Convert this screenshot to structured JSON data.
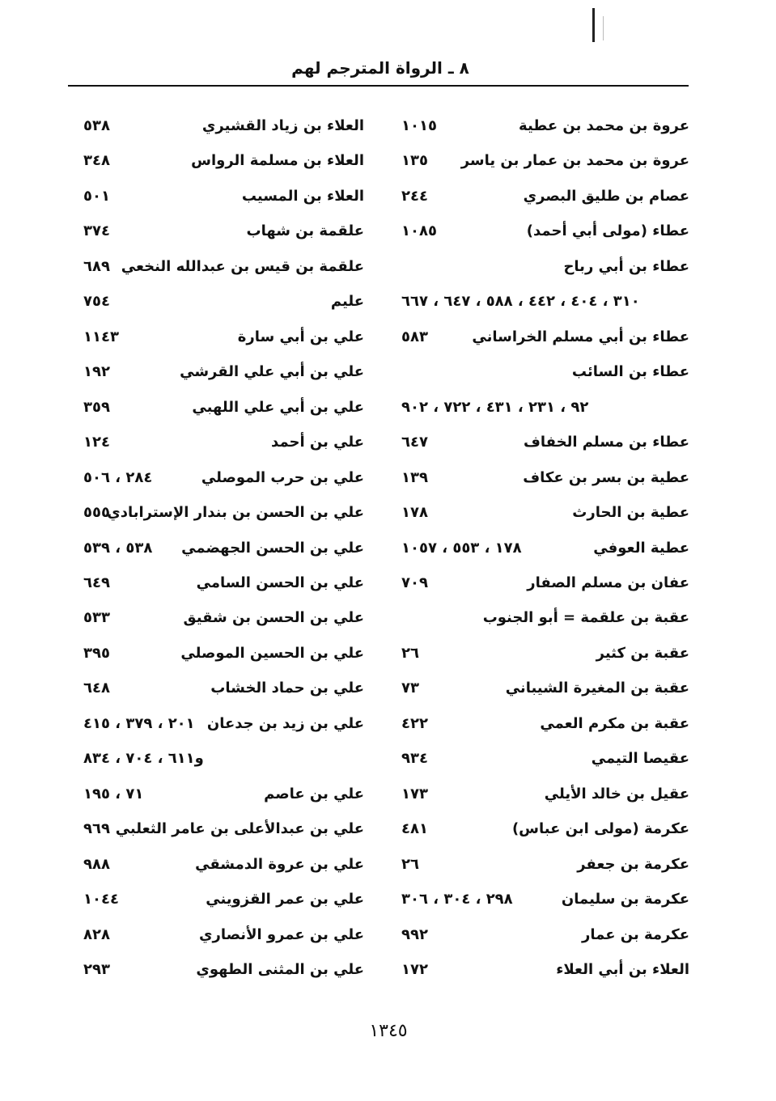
{
  "header": {
    "title": "٨ ـ الرواة المترجم لهم"
  },
  "page_number": "١٣٤٥",
  "right_column": [
    {
      "name": "عروة بن محمد بن عطية",
      "pages": "١٠١٥"
    },
    {
      "name": "عروة بن محمد بن عمار بن ياسر",
      "pages": "١٣٥"
    },
    {
      "name": "عصام بن طليق البصري",
      "pages": "٢٤٤"
    },
    {
      "name": "عطاء (مولى أبي أحمد)",
      "pages": "١٠٨٥"
    },
    {
      "name": "عطاء بن أبي رباح",
      "pages": ""
    },
    {
      "name": "",
      "pages": "٣١٠ ، ٤٠٤ ، ٤٤٢ ، ٥٨٨ ، ٦٤٧ ، ٦٦٧"
    },
    {
      "name": "عطاء بن أبي مسلم الخراساني",
      "pages": "٥٨٣"
    },
    {
      "name": "عطاء بن السائب",
      "pages": ""
    },
    {
      "name": "",
      "pages": "٩٢ ، ٢٣١ ، ٤٣١ ، ٧٢٢ ، ٩٠٢"
    },
    {
      "name": "عطاء بن مسلم الخفاف",
      "pages": "٦٤٧"
    },
    {
      "name": "عطية بن بسر بن عكاف",
      "pages": "١٣٩"
    },
    {
      "name": "عطية بن الحارث",
      "pages": "١٧٨"
    },
    {
      "name": "عطية العوفي",
      "pages": "١٧٨ ، ٥٥٣ ، ١٠٥٧"
    },
    {
      "name": "عفان بن مسلم الصفار",
      "pages": "٧٠٩"
    },
    {
      "name": "عقبة بن علقمة = أبو الجنوب",
      "pages": ""
    },
    {
      "name": "عقبة بن كثير",
      "pages": "٢٦"
    },
    {
      "name": "عقبة بن المغيرة الشيباني",
      "pages": "٧٣"
    },
    {
      "name": "عقبة بن مكرم العمي",
      "pages": "٤٢٢"
    },
    {
      "name": "عقيصا التيمي",
      "pages": "٩٣٤"
    },
    {
      "name": "عقيل بن خالد الأيلي",
      "pages": "١٧٣"
    },
    {
      "name": "عكرمة (مولى ابن عباس)",
      "pages": "٤٨١"
    },
    {
      "name": "عكرمة بن جعفر",
      "pages": "٢٦"
    },
    {
      "name": "عكرمة بن سليمان",
      "pages": "٢٩٨ ، ٣٠٤ ، ٣٠٦"
    },
    {
      "name": "عكرمة بن عمار",
      "pages": "٩٩٢"
    },
    {
      "name": "العلاء بن أبي العلاء",
      "pages": "١٧٢"
    }
  ],
  "left_column": [
    {
      "name": "العلاء بن زياد القشيري",
      "pages": "٥٣٨"
    },
    {
      "name": "العلاء بن مسلمة الرواس",
      "pages": "٣٤٨"
    },
    {
      "name": "العلاء بن المسيب",
      "pages": "٥٠١"
    },
    {
      "name": "علقمة بن شهاب",
      "pages": "٣٧٤"
    },
    {
      "name": "علقمة بن قيس بن عبدالله النخعي",
      "pages": "٦٨٩"
    },
    {
      "name": "عليم",
      "pages": "٧٥٤"
    },
    {
      "name": "علي بن أبي سارة",
      "pages": "١١٤٣"
    },
    {
      "name": "علي بن أبي علي القرشي",
      "pages": "١٩٢"
    },
    {
      "name": "علي بن أبي علي اللهبي",
      "pages": "٣٥٩"
    },
    {
      "name": "علي بن أحمد",
      "pages": "١٢٤"
    },
    {
      "name": "علي بن حرب الموصلي",
      "pages": "٢٨٤ ، ٥٠٦"
    },
    {
      "name": "علي بن الحسن بن بندار الإسترابادي",
      "pages": "٥٥٥"
    },
    {
      "name": "علي بن الحسن الجهضمي",
      "pages": "٥٣٨ ، ٥٣٩"
    },
    {
      "name": "علي بن الحسن السامي",
      "pages": "٦٤٩"
    },
    {
      "name": "علي بن الحسن بن شقيق",
      "pages": "٥٣٣"
    },
    {
      "name": "علي بن الحسين الموصلي",
      "pages": "٣٩٥"
    },
    {
      "name": "علي بن حماد الخشاب",
      "pages": "٦٤٨"
    },
    {
      "name": "علي بن زيد بن جدعان",
      "pages": "٢٠١ ، ٣٧٩ ، ٤١٥"
    },
    {
      "name": "",
      "pages": "و٦١١ ، ٧٠٤ ، ٨٣٤"
    },
    {
      "name": "علي بن عاصم",
      "pages": "٧١ ، ١٩٥"
    },
    {
      "name": "علي بن عبدالأعلى بن عامر الثعلبي",
      "pages": "٩٦٩"
    },
    {
      "name": "علي بن عروة الدمشقي",
      "pages": "٩٨٨"
    },
    {
      "name": "علي بن عمر القزويني",
      "pages": "١٠٤٤"
    },
    {
      "name": "علي بن عمرو الأنصاري",
      "pages": "٨٢٨"
    },
    {
      "name": "علي بن المثنى الطهوي",
      "pages": "٢٩٣"
    }
  ]
}
